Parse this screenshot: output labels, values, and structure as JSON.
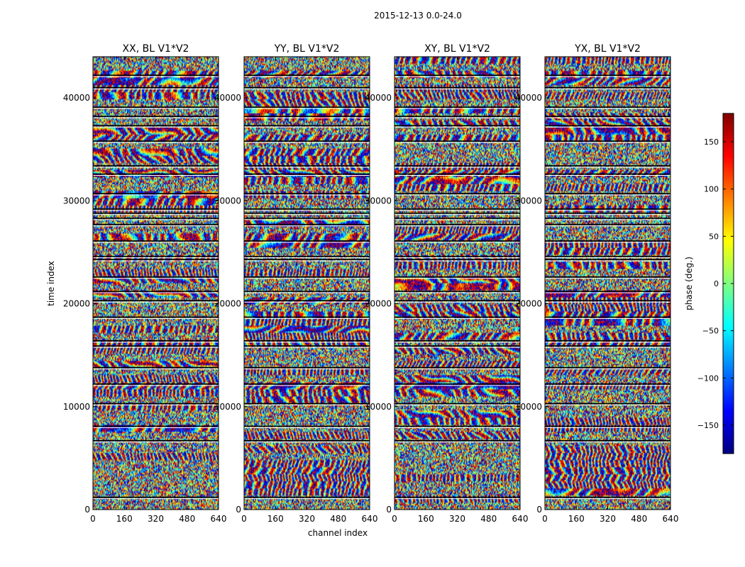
{
  "figure": {
    "suptitle": "2015-12-13 0.0-24.0",
    "xlabel": "channel index",
    "ylabel": "time index",
    "colorbar_label": "phase (deg.)"
  },
  "chart_data": {
    "type": "heatmap",
    "colormap": "jet",
    "colormap_stops": [
      "#00007f",
      "#0000ff",
      "#007fff",
      "#00ffff",
      "#7fff7f",
      "#ffff00",
      "#ff7f00",
      "#ff0000",
      "#7f0000"
    ],
    "xlim": [
      0,
      640
    ],
    "ylim": [
      0,
      44000
    ],
    "xticks": [
      0,
      160,
      320,
      480,
      640
    ],
    "yticks": [
      0,
      10000,
      20000,
      30000,
      40000
    ],
    "zlim": [
      -180,
      180
    ],
    "zticks": [
      -150,
      -100,
      -50,
      0,
      50,
      100,
      150
    ],
    "panels": [
      {
        "title": "XX, BL V1*V2"
      },
      {
        "title": "YY, BL V1*V2"
      },
      {
        "title": "XY, BL V1*V2"
      },
      {
        "title": "YX, BL V1*V2"
      }
    ],
    "flagged_time_rows": [
      1200,
      6700,
      8100,
      10300,
      12200,
      13800,
      15900,
      16400,
      18700,
      20300,
      21200,
      22600,
      24300,
      24600,
      26100,
      27700,
      28300,
      28800,
      29200,
      30700,
      32600,
      33400,
      35800,
      37300,
      38200,
      39100,
      41000,
      42200
    ],
    "values_description": ""
  }
}
